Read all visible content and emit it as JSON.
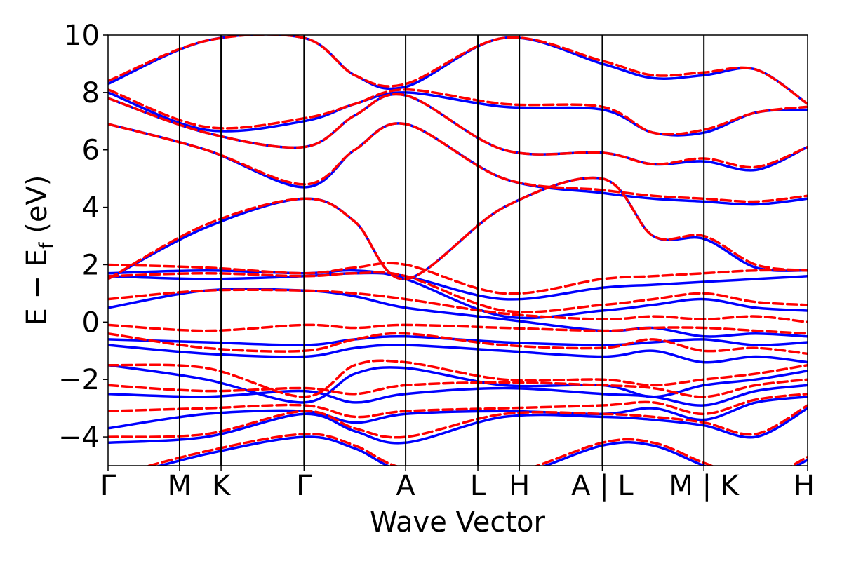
{
  "chart_data": {
    "type": "line",
    "title": "",
    "xlabel": "Wave Vector",
    "ylabel": "E − E_f (eV)",
    "ylabel_main": "E − E",
    "ylabel_sub": "f",
    "ylabel_unit": " (eV)",
    "ylim": [
      -5,
      10
    ],
    "xlim": [
      0,
      9.78
    ],
    "yticks": [
      -4,
      -2,
      0,
      2,
      4,
      6,
      8,
      10
    ],
    "ytick_labels": [
      "−4",
      "−2",
      "0",
      "2",
      "4",
      "6",
      "8",
      "10"
    ],
    "kpoints": [
      {
        "label": "Γ",
        "x": 0.0
      },
      {
        "label": "M",
        "x": 1.0
      },
      {
        "label": "K",
        "x": 1.58
      },
      {
        "label": "Γ",
        "x": 2.74
      },
      {
        "label": "A",
        "x": 4.16
      },
      {
        "label": "L",
        "x": 5.17
      },
      {
        "label": "H",
        "x": 5.75
      },
      {
        "label": "A | L",
        "x": 6.91
      },
      {
        "label": "M | K",
        "x": 8.33
      },
      {
        "label": "H",
        "x": 9.78
      }
    ],
    "segments": [
      [
        0.0,
        2.74
      ],
      [
        2.74,
        4.16
      ],
      [
        4.16,
        6.91
      ],
      [
        6.91,
        8.33
      ],
      [
        8.33,
        9.78
      ]
    ],
    "grid": false,
    "colors": {
      "blue": "#0000ff",
      "red": "#ff0000",
      "frame": "#000000"
    },
    "series": [
      {
        "style": "blue-solid",
        "bands": [
          [
            -5.5,
            -4.6,
            -4.0,
            -4.4,
            -5.2,
            -5.4,
            -4.3,
            -4.3,
            -5.0,
            -5.6,
            -4.8
          ],
          [
            -4.2,
            -4.0,
            -3.2,
            -3.8,
            -4.2,
            -3.3,
            -3.3,
            -3.4,
            -3.6,
            -4.0,
            -3.0
          ],
          [
            -3.7,
            -3.2,
            -3.1,
            -3.5,
            -3.2,
            -3.1,
            -3.2,
            -3.0,
            -3.4,
            -2.8,
            -2.6
          ],
          [
            -2.5,
            -2.6,
            -2.4,
            -2.8,
            -2.5,
            -2.3,
            -2.5,
            -2.6,
            -2.9,
            -2.4,
            -2.2
          ],
          [
            -1.5,
            -2.0,
            -2.8,
            -1.8,
            -1.6,
            -2.2,
            -2.2,
            -2.6,
            -2.2,
            -2.0,
            -1.7
          ],
          [
            -0.8,
            -1.1,
            -1.2,
            -0.9,
            -0.8,
            -1.0,
            -1.2,
            -1.0,
            -1.4,
            -1.2,
            -1.4
          ],
          [
            -0.6,
            -0.7,
            -0.8,
            -0.6,
            -0.5,
            -0.7,
            -0.8,
            -0.7,
            -0.6,
            -0.8,
            -0.7
          ],
          [
            0.5,
            1.1,
            1.1,
            0.9,
            0.5,
            0.1,
            -0.3,
            -0.2,
            -0.5,
            -0.4,
            -0.5
          ],
          [
            1.6,
            1.5,
            1.6,
            1.7,
            1.6,
            0.8,
            1.2,
            1.3,
            1.4,
            1.5,
            1.6
          ],
          [
            1.7,
            1.8,
            1.7,
            1.8,
            1.5,
            0.2,
            0.4,
            0.6,
            0.8,
            0.5,
            0.4
          ],
          [
            1.5,
            3.3,
            4.3,
            3.5,
            1.5,
            4.0,
            5.0,
            3.0,
            2.9,
            1.9,
            1.8
          ],
          [
            6.9,
            6.0,
            4.7,
            6.0,
            6.9,
            5.0,
            4.5,
            4.3,
            4.2,
            4.1,
            4.3
          ],
          [
            7.8,
            6.6,
            6.1,
            7.2,
            7.9,
            6.0,
            5.9,
            5.5,
            5.6,
            5.3,
            6.1
          ],
          [
            8.0,
            6.7,
            7.0,
            7.6,
            8.0,
            7.5,
            7.4,
            6.6,
            6.6,
            7.3,
            7.4
          ],
          [
            8.3,
            9.8,
            9.9,
            8.6,
            8.2,
            9.9,
            9.0,
            8.5,
            8.6,
            8.8,
            7.6
          ]
        ]
      },
      {
        "style": "red-dashed",
        "bands": [
          [
            -5.4,
            -4.5,
            -3.9,
            -4.3,
            -5.1,
            -5.3,
            -4.2,
            -4.2,
            -4.9,
            -5.5,
            -4.7
          ],
          [
            -4.0,
            -3.9,
            -3.1,
            -3.7,
            -4.0,
            -3.2,
            -3.2,
            -3.3,
            -3.5,
            -3.9,
            -2.9
          ],
          [
            -3.1,
            -3.0,
            -2.9,
            -3.3,
            -3.1,
            -3.0,
            -2.9,
            -2.8,
            -3.2,
            -2.7,
            -2.5
          ],
          [
            -2.2,
            -2.4,
            -2.3,
            -2.5,
            -2.2,
            -2.1,
            -2.2,
            -2.3,
            -2.6,
            -2.2,
            -2.0
          ],
          [
            -1.5,
            -1.6,
            -2.6,
            -1.5,
            -1.4,
            -2.0,
            -2.0,
            -2.2,
            -2.0,
            -1.8,
            -1.5
          ],
          [
            -0.4,
            -0.9,
            -1.0,
            -0.6,
            -0.4,
            -0.8,
            -0.9,
            -0.6,
            -1.0,
            -0.9,
            -1.1
          ],
          [
            -0.1,
            -0.3,
            -0.1,
            -0.2,
            -0.1,
            -0.2,
            -0.3,
            -0.2,
            -0.2,
            -0.3,
            -0.4
          ],
          [
            0.8,
            1.1,
            1.1,
            1.0,
            0.8,
            0.3,
            0.1,
            0.2,
            0.1,
            0.2,
            0.0
          ],
          [
            2.0,
            1.9,
            1.7,
            1.9,
            2.0,
            1.0,
            1.5,
            1.6,
            1.7,
            1.8,
            1.8
          ],
          [
            1.6,
            1.7,
            1.6,
            1.7,
            1.6,
            0.4,
            0.6,
            0.8,
            1.0,
            0.7,
            0.6
          ],
          [
            1.5,
            3.4,
            4.3,
            3.5,
            1.5,
            4.0,
            5.0,
            3.0,
            3.0,
            2.0,
            1.8
          ],
          [
            6.9,
            6.0,
            4.8,
            6.0,
            6.9,
            5.0,
            4.6,
            4.4,
            4.3,
            4.2,
            4.4
          ],
          [
            7.8,
            6.6,
            6.1,
            7.2,
            7.9,
            6.0,
            5.9,
            5.5,
            5.7,
            5.4,
            6.1
          ],
          [
            8.1,
            6.8,
            7.1,
            7.6,
            8.1,
            7.6,
            7.5,
            6.6,
            6.7,
            7.3,
            7.5
          ],
          [
            8.4,
            9.8,
            9.9,
            8.6,
            8.3,
            9.9,
            9.1,
            8.6,
            8.7,
            8.8,
            7.6
          ]
        ]
      }
    ]
  }
}
